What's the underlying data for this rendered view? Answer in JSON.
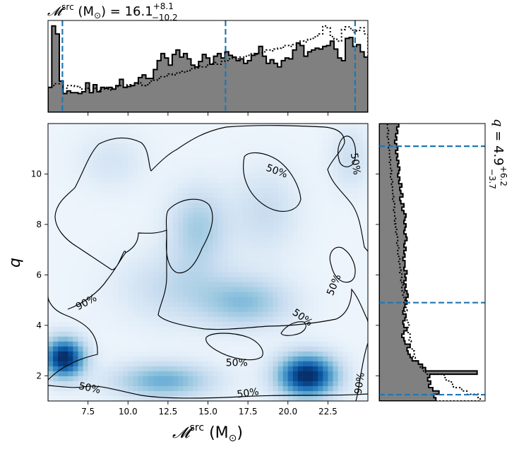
{
  "chart_data": [
    {
      "type": "heatmap",
      "name": "joint-density",
      "xlabel_main": "𝓜",
      "xlabel_sup": "src",
      "xlabel_unit_open": " (M",
      "xlabel_unit_sub": "⊙",
      "xlabel_unit_close": ")",
      "ylabel": "q",
      "xlim": [
        5.0,
        25.0
      ],
      "ylim": [
        1.0,
        12.0
      ],
      "xticks": [
        7.5,
        10.0,
        12.5,
        15.0,
        17.5,
        20.0,
        22.5
      ],
      "xtick_labels": [
        "7.5",
        "10.0",
        "12.5",
        "15.0",
        "17.5",
        "20.0",
        "22.5"
      ],
      "yticks": [
        2,
        4,
        6,
        8,
        10
      ],
      "ytick_labels": [
        "2",
        "4",
        "6",
        "8",
        "10"
      ],
      "colormap": "Blues",
      "density_peaks": [
        {
          "x": 6.0,
          "y": 2.7,
          "weight": 1.0,
          "sx": 0.9,
          "sy": 0.55
        },
        {
          "x": 21.2,
          "y": 2.0,
          "weight": 1.0,
          "sx": 1.3,
          "sy": 0.6
        },
        {
          "x": 12.2,
          "y": 1.8,
          "weight": 0.45,
          "sx": 2.2,
          "sy": 0.5
        },
        {
          "x": 17.4,
          "y": 4.9,
          "weight": 0.35,
          "sx": 2.0,
          "sy": 0.7
        },
        {
          "x": 14.4,
          "y": 7.9,
          "weight": 0.3,
          "sx": 1.3,
          "sy": 1.1
        },
        {
          "x": 13.0,
          "y": 5.5,
          "weight": 0.2,
          "sx": 2.5,
          "sy": 1.0
        },
        {
          "x": 18.6,
          "y": 8.5,
          "weight": 0.18,
          "sx": 1.5,
          "sy": 1.2
        },
        {
          "x": 9.0,
          "y": 10.5,
          "weight": 0.12,
          "sx": 1.5,
          "sy": 0.8
        },
        {
          "x": 23.9,
          "y": 10.6,
          "weight": 0.16,
          "sx": 0.9,
          "sy": 0.9
        }
      ],
      "contour_labels": [
        {
          "text": "90%",
          "x": 7.4,
          "y": 4.9,
          "angle": -28
        },
        {
          "text": "50%",
          "x": 19.3,
          "y": 10.1,
          "angle": 20
        },
        {
          "text": "50%",
          "x": 24.2,
          "y": 10.4,
          "angle": 82
        },
        {
          "text": "50%",
          "x": 22.9,
          "y": 5.6,
          "angle": -68
        },
        {
          "text": "50%",
          "x": 20.9,
          "y": 4.3,
          "angle": 35
        },
        {
          "text": "50%",
          "x": 16.8,
          "y": 2.5,
          "angle": 0
        },
        {
          "text": "50%",
          "x": 7.6,
          "y": 1.5,
          "angle": 12
        },
        {
          "text": "50%",
          "x": 17.5,
          "y": 1.3,
          "angle": -8
        },
        {
          "text": "90%",
          "x": 24.5,
          "y": 1.7,
          "angle": -82
        }
      ]
    },
    {
      "type": "bar",
      "name": "mass-marginal",
      "title_main": "𝓜",
      "title_sup": "src",
      "title_unit_open": " (M",
      "title_unit_sub": "⊙",
      "title_unit_close": ") = 16.1",
      "title_err_plus": "+8.1",
      "title_err_minus": "−10.2",
      "median": 16.1,
      "err_plus": 8.1,
      "err_minus": 10.2,
      "quantile_lines": [
        5.9,
        16.1,
        24.2
      ],
      "bin_edges": [
        5.0,
        25.0
      ],
      "posterior": [
        0.28,
        0.97,
        0.88,
        0.35,
        0.21,
        0.24,
        0.22,
        0.22,
        0.21,
        0.23,
        0.33,
        0.22,
        0.31,
        0.23,
        0.28,
        0.27,
        0.28,
        0.26,
        0.3,
        0.37,
        0.28,
        0.29,
        0.3,
        0.33,
        0.39,
        0.42,
        0.38,
        0.38,
        0.48,
        0.58,
        0.66,
        0.61,
        0.53,
        0.65,
        0.7,
        0.62,
        0.66,
        0.6,
        0.53,
        0.51,
        0.57,
        0.65,
        0.61,
        0.54,
        0.63,
        0.66,
        0.61,
        0.68,
        0.64,
        0.62,
        0.58,
        0.6,
        0.55,
        0.58,
        0.64,
        0.66,
        0.74,
        0.63,
        0.55,
        0.59,
        0.55,
        0.51,
        0.58,
        0.61,
        0.6,
        0.7,
        0.78,
        0.75,
        0.63,
        0.68,
        0.7,
        0.72,
        0.71,
        0.74,
        0.75,
        0.8,
        0.71,
        0.61,
        0.58,
        0.83,
        0.84,
        0.74,
        0.76,
        0.68,
        0.62
      ],
      "prior": [
        0.28,
        0.3,
        0.32,
        0.35,
        0.21,
        0.3,
        0.3,
        0.29,
        0.28,
        0.26,
        0.27,
        0.25,
        0.27,
        0.24,
        0.26,
        0.28,
        0.25,
        0.27,
        0.29,
        0.3,
        0.28,
        0.31,
        0.3,
        0.32,
        0.33,
        0.3,
        0.31,
        0.35,
        0.36,
        0.38,
        0.4,
        0.41,
        0.43,
        0.42,
        0.44,
        0.46,
        0.45,
        0.47,
        0.49,
        0.5,
        0.52,
        0.51,
        0.53,
        0.55,
        0.56,
        0.54,
        0.57,
        0.58,
        0.6,
        0.61,
        0.6,
        0.62,
        0.63,
        0.64,
        0.66,
        0.65,
        0.67,
        0.68,
        0.7,
        0.69,
        0.71,
        0.72,
        0.73,
        0.75,
        0.74,
        0.76,
        0.77,
        0.8,
        0.79,
        0.82,
        0.83,
        0.86,
        0.88,
        0.97,
        0.95,
        0.85,
        0.82,
        0.8,
        0.93,
        0.96,
        0.94,
        0.9,
        0.92,
        0.95,
        0.88
      ]
    },
    {
      "type": "bar",
      "name": "q-marginal",
      "title_main": "q",
      "title_eq": " = 4.9",
      "title_err_plus": "+6.2",
      "title_err_minus": "−3.7",
      "median": 4.9,
      "err_plus": 6.2,
      "err_minus": 3.7,
      "quantile_lines": [
        1.25,
        4.9,
        11.1
      ],
      "bin_edges": [
        1.0,
        12.0
      ],
      "posterior": [
        0.55,
        0.53,
        0.58,
        0.52,
        0.48,
        0.5,
        0.47,
        0.49,
        0.95,
        0.45,
        0.42,
        0.38,
        0.32,
        0.3,
        0.28,
        0.27,
        0.3,
        0.25,
        0.24,
        0.22,
        0.24,
        0.27,
        0.24,
        0.23,
        0.25,
        0.26,
        0.23,
        0.24,
        0.25,
        0.27,
        0.26,
        0.28,
        0.27,
        0.25,
        0.26,
        0.24,
        0.26,
        0.25,
        0.27,
        0.24,
        0.25,
        0.25,
        0.23,
        0.25,
        0.24,
        0.26,
        0.24,
        0.25,
        0.27,
        0.26,
        0.24,
        0.25,
        0.26,
        0.24,
        0.25,
        0.26,
        0.24,
        0.22,
        0.24,
        0.21,
        0.2,
        0.23,
        0.21,
        0.2,
        0.22,
        0.19,
        0.2,
        0.18,
        0.19,
        0.2,
        0.18,
        0.19,
        0.17,
        0.18,
        0.16,
        0.18,
        0.17,
        0.15,
        0.17,
        0.16,
        0.18,
        0.17,
        0.19
      ],
      "prior": [
        0.98,
        0.96,
        0.85,
        0.8,
        0.72,
        0.7,
        0.65,
        0.63,
        0.45,
        0.42,
        0.4,
        0.38,
        0.35,
        0.33,
        0.34,
        0.32,
        0.3,
        0.31,
        0.29,
        0.3,
        0.28,
        0.27,
        0.29,
        0.28,
        0.27,
        0.26,
        0.25,
        0.27,
        0.26,
        0.24,
        0.25,
        0.23,
        0.24,
        0.22,
        0.23,
        0.22,
        0.21,
        0.22,
        0.2,
        0.21,
        0.2,
        0.19,
        0.2,
        0.19,
        0.18,
        0.19,
        0.18,
        0.17,
        0.18,
        0.17,
        0.16,
        0.17,
        0.16,
        0.15,
        0.16,
        0.15,
        0.15,
        0.14,
        0.15,
        0.14,
        0.13,
        0.14,
        0.13,
        0.13,
        0.12,
        0.13,
        0.12,
        0.11,
        0.12,
        0.11,
        0.11,
        0.1,
        0.11,
        0.1,
        0.1,
        0.09,
        0.1,
        0.09,
        0.09,
        0.08,
        0.09,
        0.08,
        0.08
      ]
    }
  ],
  "colors": {
    "quantile_line": "#1f77b4",
    "hist_fill": "#808080",
    "hist_edge": "#000000",
    "frame": "#000000"
  }
}
